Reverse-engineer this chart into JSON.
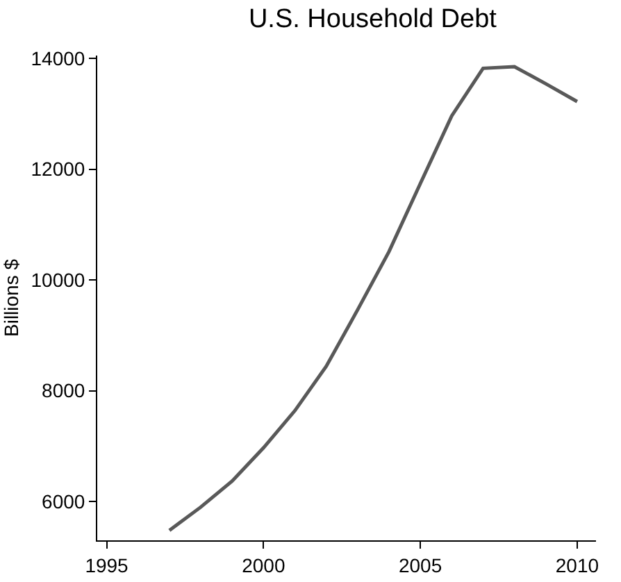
{
  "chart_data": {
    "type": "line",
    "title": "U.S. Household Debt",
    "ylabel": "Billions $",
    "x": [
      1997,
      1998,
      1999,
      2000,
      2001,
      2002,
      2003,
      2004,
      2005,
      2006,
      2007,
      2008,
      2009,
      2010
    ],
    "series": [
      {
        "color": "#595959",
        "values": [
          5480,
          5900,
          6370,
          6970,
          7640,
          8440,
          9460,
          10510,
          11740,
          12960,
          13820,
          13850,
          13540,
          13220
        ]
      }
    ],
    "xlim": [
      1994.7,
      2010.6
    ],
    "xticks": [
      1995,
      2000,
      2005,
      2010
    ],
    "ylim": [
      5300,
      14050
    ],
    "yticks": [
      6000,
      8000,
      10000,
      12000,
      14000
    ],
    "grid": false,
    "legend": false,
    "marker": "none",
    "line_style": "solid"
  }
}
